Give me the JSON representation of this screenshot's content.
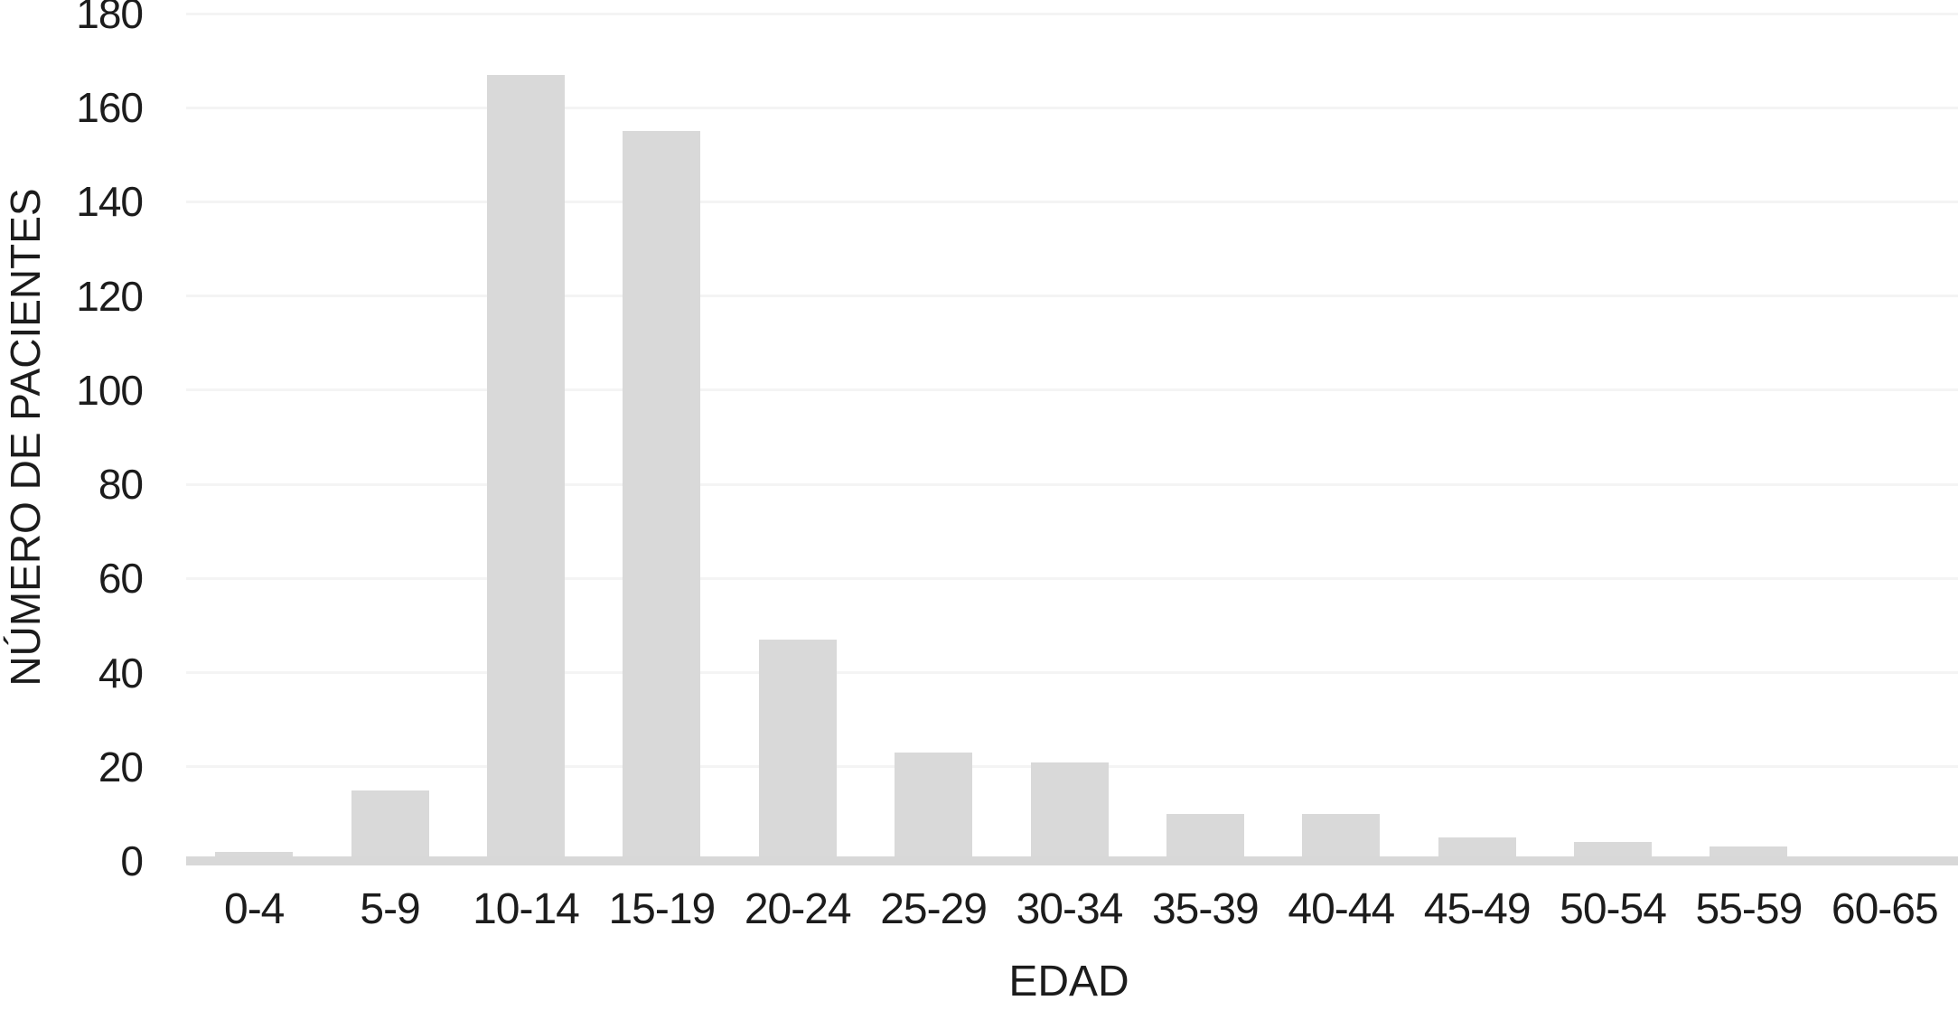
{
  "chart_data": {
    "type": "bar",
    "title": "",
    "categories": [
      "0-4",
      "5-9",
      "10-14",
      "15-19",
      "20-24",
      "25-29",
      "30-34",
      "35-39",
      "40-44",
      "45-49",
      "50-54",
      "55-59",
      "60-65"
    ],
    "values": [
      2,
      15,
      167,
      155,
      47,
      23,
      21,
      10,
      10,
      5,
      4,
      3,
      1
    ],
    "xlabel": "EDAD",
    "ylabel": "NÚMERO DE PACIENTES",
    "ylim": [
      0,
      180
    ],
    "yticks": [
      0,
      20,
      40,
      60,
      80,
      100,
      120,
      140,
      160,
      180
    ],
    "grid": "horizontal",
    "legend": "none",
    "colors": {
      "bar": "#d9d9d9",
      "gridline": "#f4f4f4",
      "axis_line": "#d8d8d8",
      "text": "#1c1c1c",
      "background": "#ffffff"
    }
  }
}
